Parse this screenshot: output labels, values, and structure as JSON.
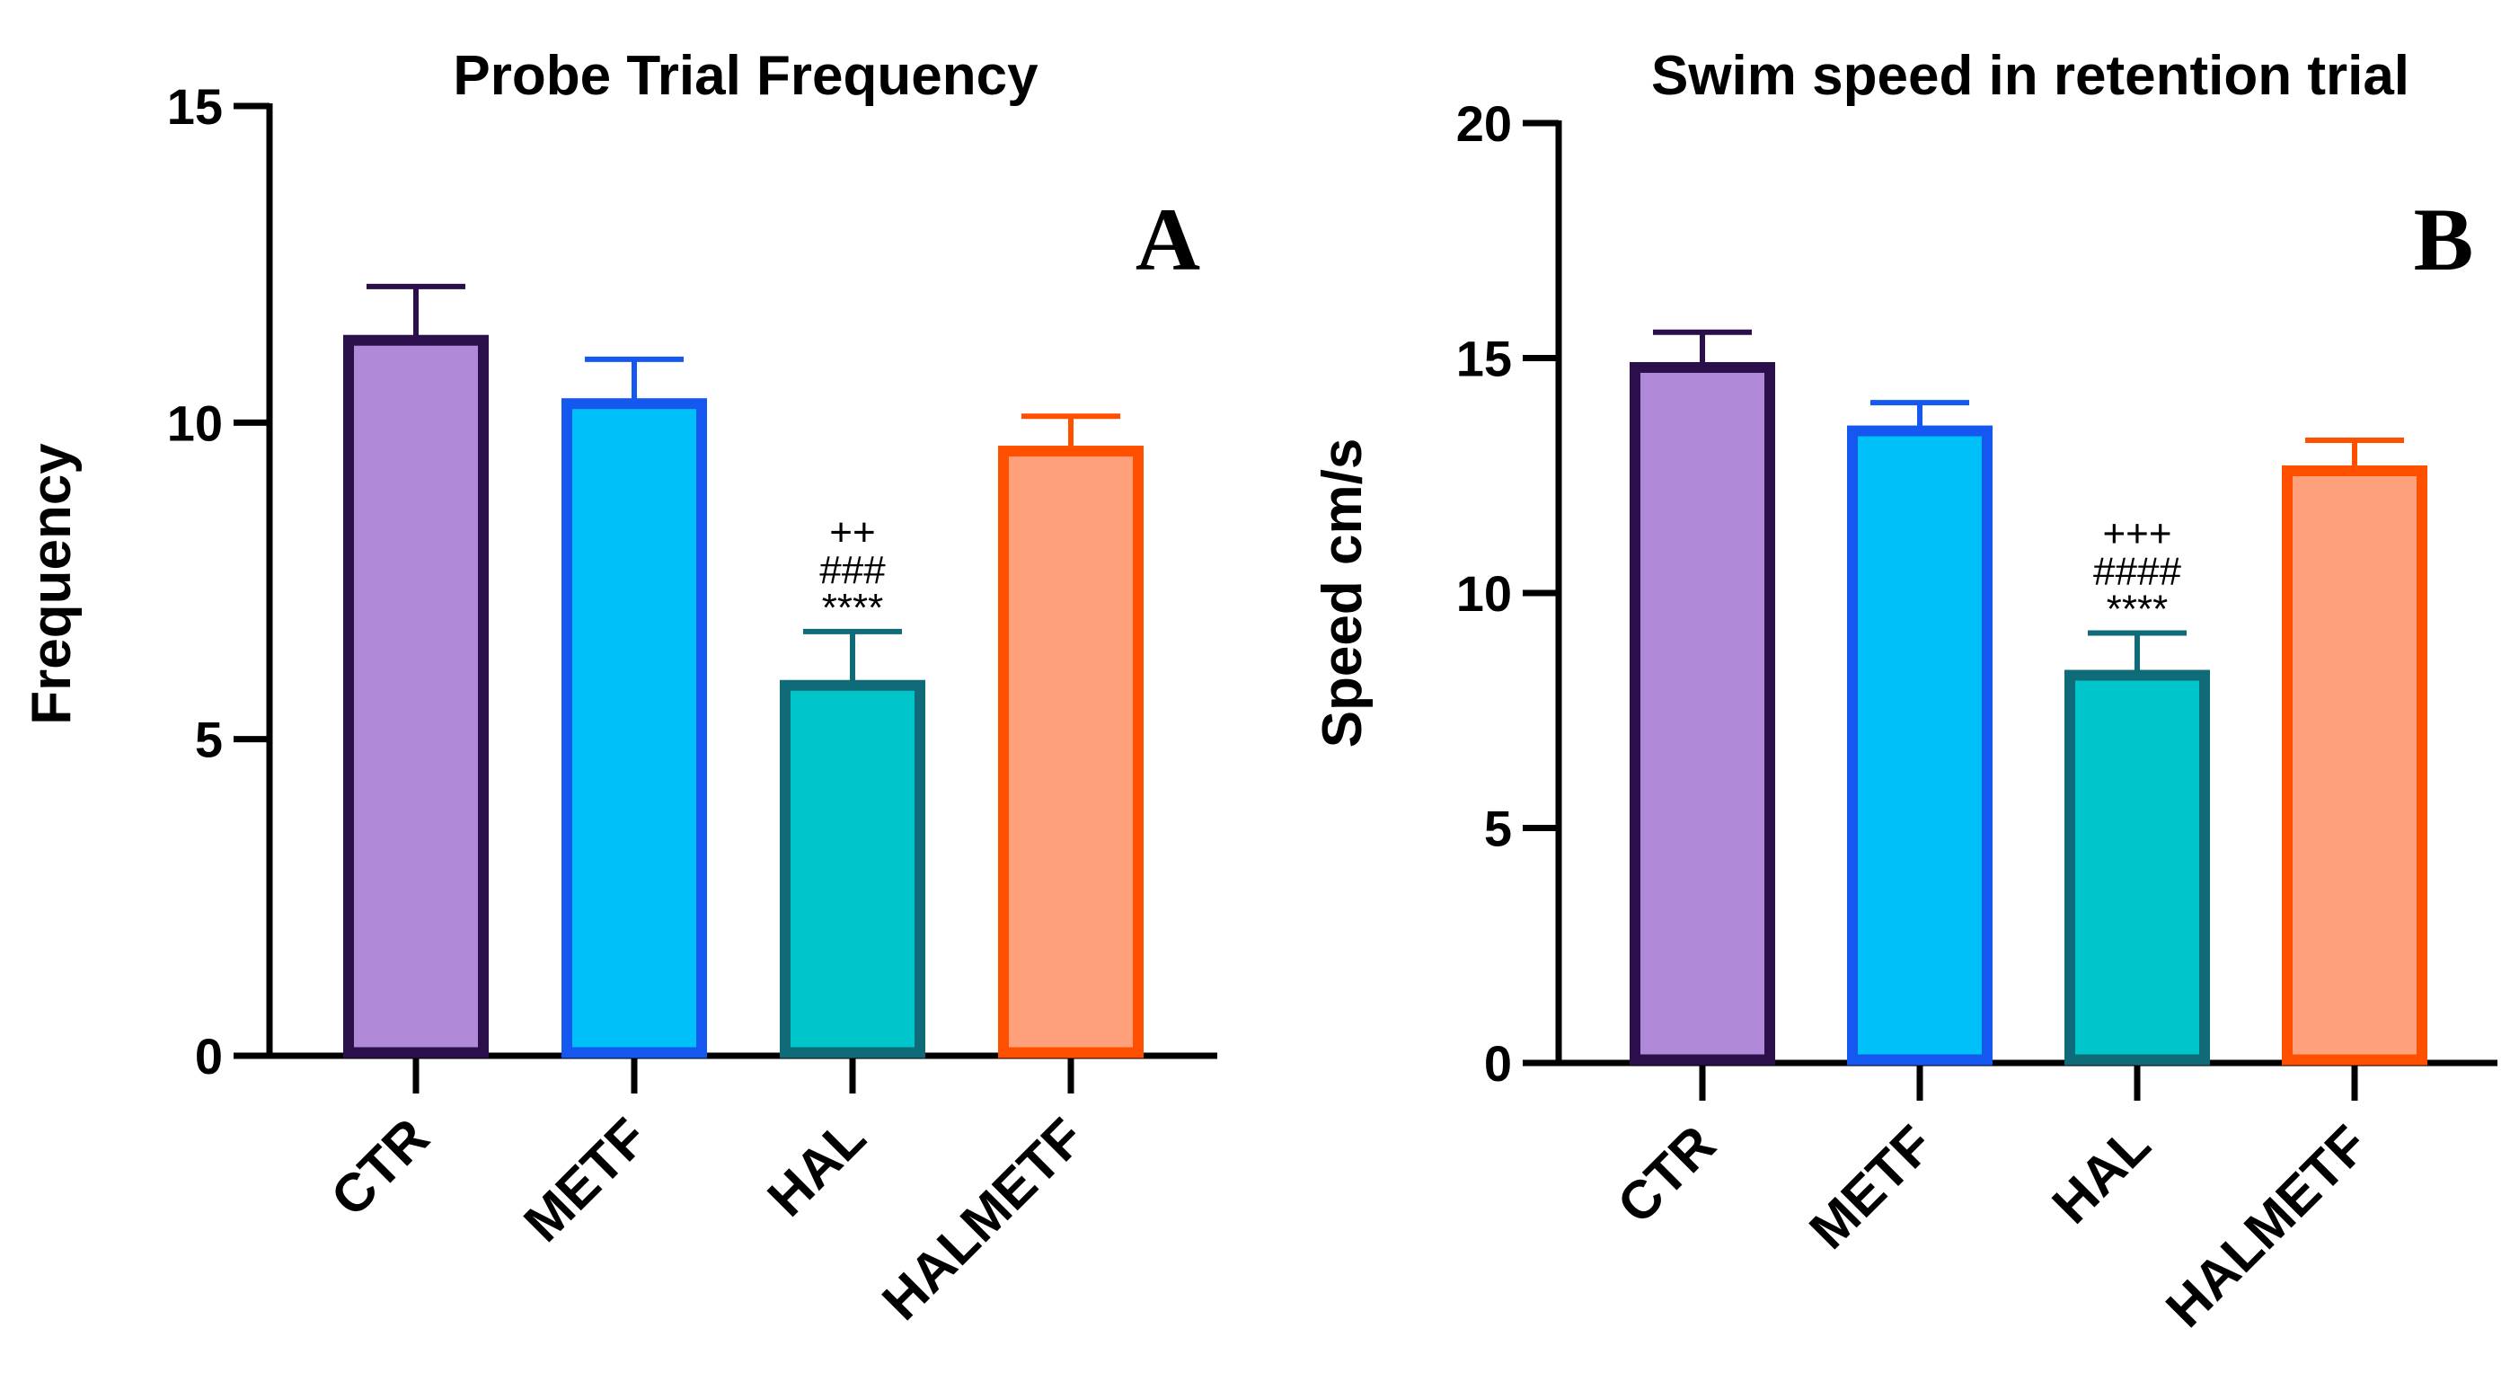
{
  "chart_data": [
    {
      "type": "bar",
      "panel": "A",
      "title": "Probe Trial Frequency",
      "xlabel": "",
      "ylabel": "Frequency",
      "ylim": [
        0,
        15
      ],
      "yticks": [
        0,
        5,
        10,
        15
      ],
      "categories": [
        "CTR",
        "METF",
        "HAL",
        "HALMETF"
      ],
      "values": [
        11.3,
        10.3,
        5.85,
        9.55
      ],
      "errors": [
        0.85,
        0.7,
        0.85,
        0.55
      ],
      "annotations": [
        [],
        [],
        [
          "++",
          "###",
          "****"
        ],
        []
      ],
      "fill_colors": [
        "#b08ad8",
        "#00c0fa",
        "#00c6cc",
        "#ffa07d"
      ],
      "edge_colors": [
        "#2a0f4a",
        "#1558f0",
        "#0f6b78",
        "#ff5000"
      ]
    },
    {
      "type": "bar",
      "panel": "B",
      "title": "Swim speed in retention trial",
      "xlabel": "",
      "ylabel": "Speed cm/s",
      "ylim": [
        0,
        20
      ],
      "yticks": [
        0,
        5,
        10,
        15,
        20
      ],
      "categories": [
        "CTR",
        "METF",
        "HAL",
        "HALMETF"
      ],
      "values": [
        14.8,
        13.45,
        8.25,
        12.6
      ],
      "errors": [
        0.75,
        0.6,
        0.9,
        0.65
      ],
      "annotations": [
        [],
        [],
        [
          "+++",
          "####",
          "****"
        ],
        []
      ],
      "fill_colors": [
        "#b08ad8",
        "#00c0fa",
        "#00c6cc",
        "#ffa07d"
      ],
      "edge_colors": [
        "#2a0f4a",
        "#1558f0",
        "#0f6b78",
        "#ff5000"
      ]
    }
  ]
}
